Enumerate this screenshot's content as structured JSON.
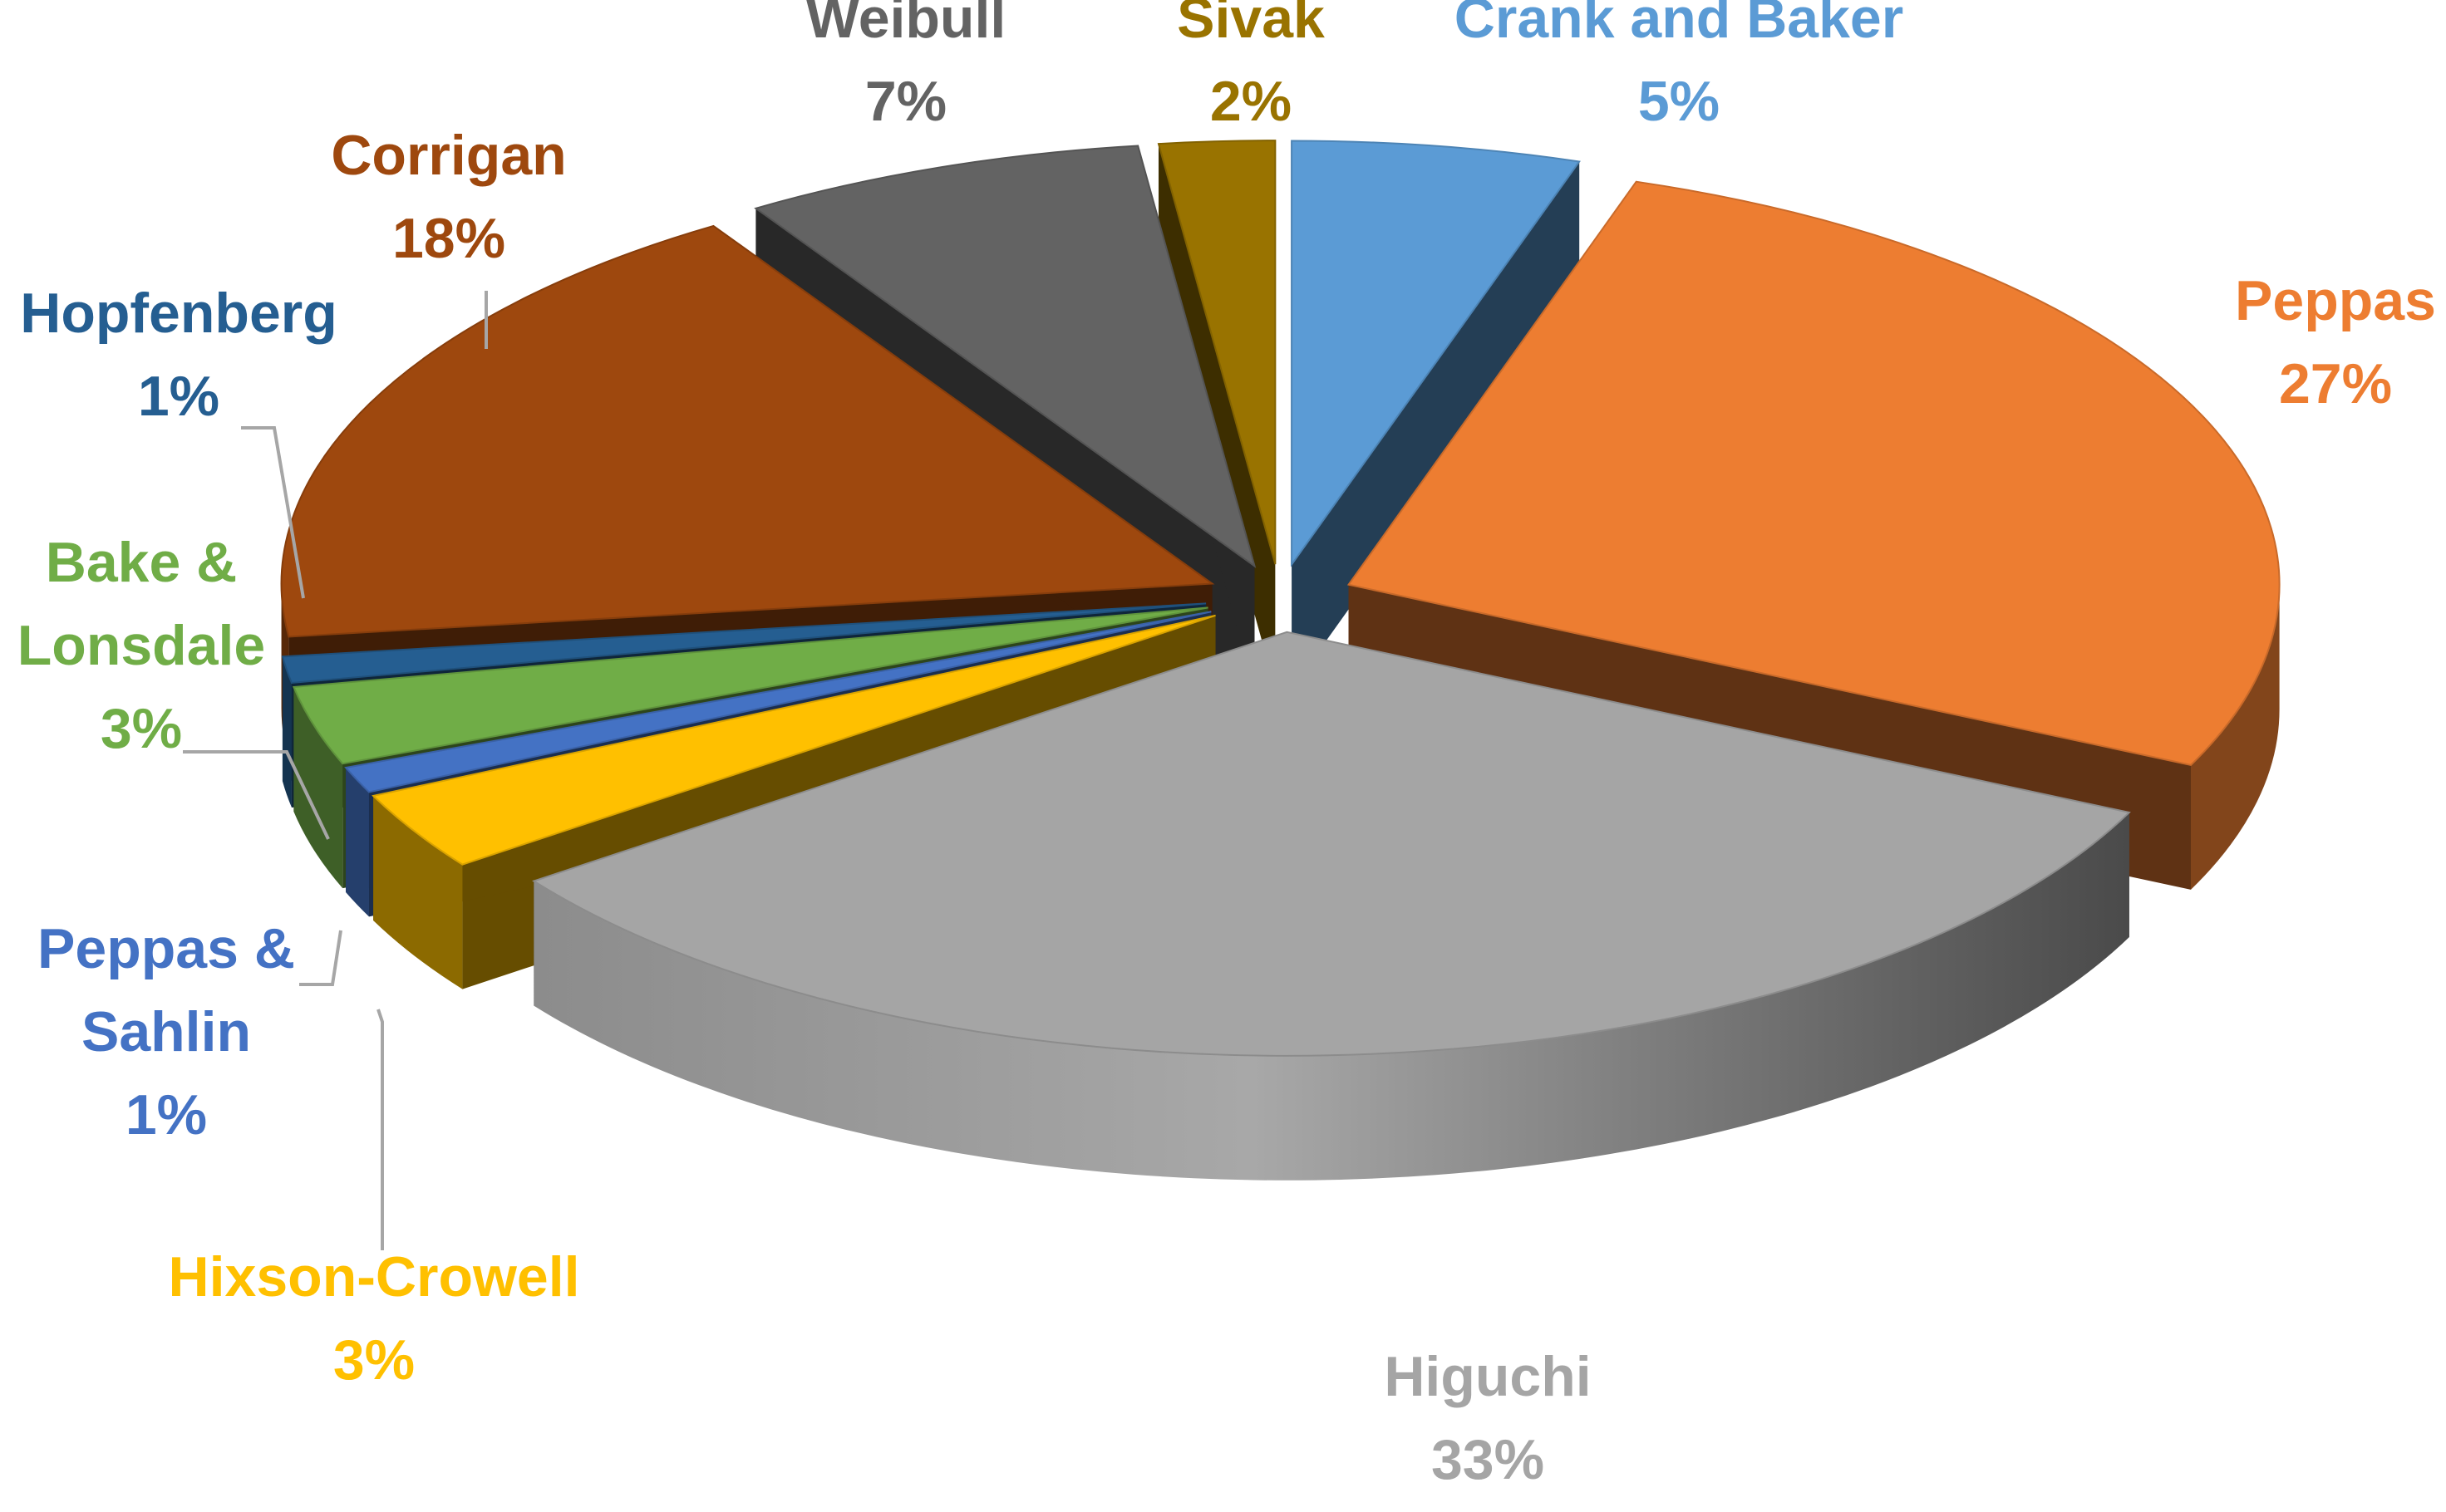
{
  "chart_data": {
    "type": "pie",
    "title": "",
    "style": "3d-exploded",
    "slices": [
      {
        "label": "Crank and Baker",
        "value": 5,
        "display": "5%",
        "color": "#5B9BD5"
      },
      {
        "label": "Peppas",
        "value": 27,
        "display": "27%",
        "color": "#ED7D31"
      },
      {
        "label": "Higuchi",
        "value": 33,
        "display": "33%",
        "color": "#A5A5A5"
      },
      {
        "label": "Hixson-Crowell",
        "value": 3,
        "display": "3%",
        "color": "#FFC000"
      },
      {
        "label": "Peppas & Sahlin",
        "value": 1,
        "display": "1%",
        "color": "#4472C4"
      },
      {
        "label": "Bake & Lonsdale",
        "value": 3,
        "display": "3%",
        "color": "#70AD47"
      },
      {
        "label": "Hopfenberg",
        "value": 1,
        "display": "1%",
        "color": "#255E91"
      },
      {
        "label": "Corrigan",
        "value": 18,
        "display": "18%",
        "color": "#9E480E"
      },
      {
        "label": "Weibull",
        "value": 7,
        "display": "7%",
        "color": "#636363"
      },
      {
        "label": "Sivak",
        "value": 2,
        "display": "2%",
        "color": "#997300"
      }
    ]
  }
}
